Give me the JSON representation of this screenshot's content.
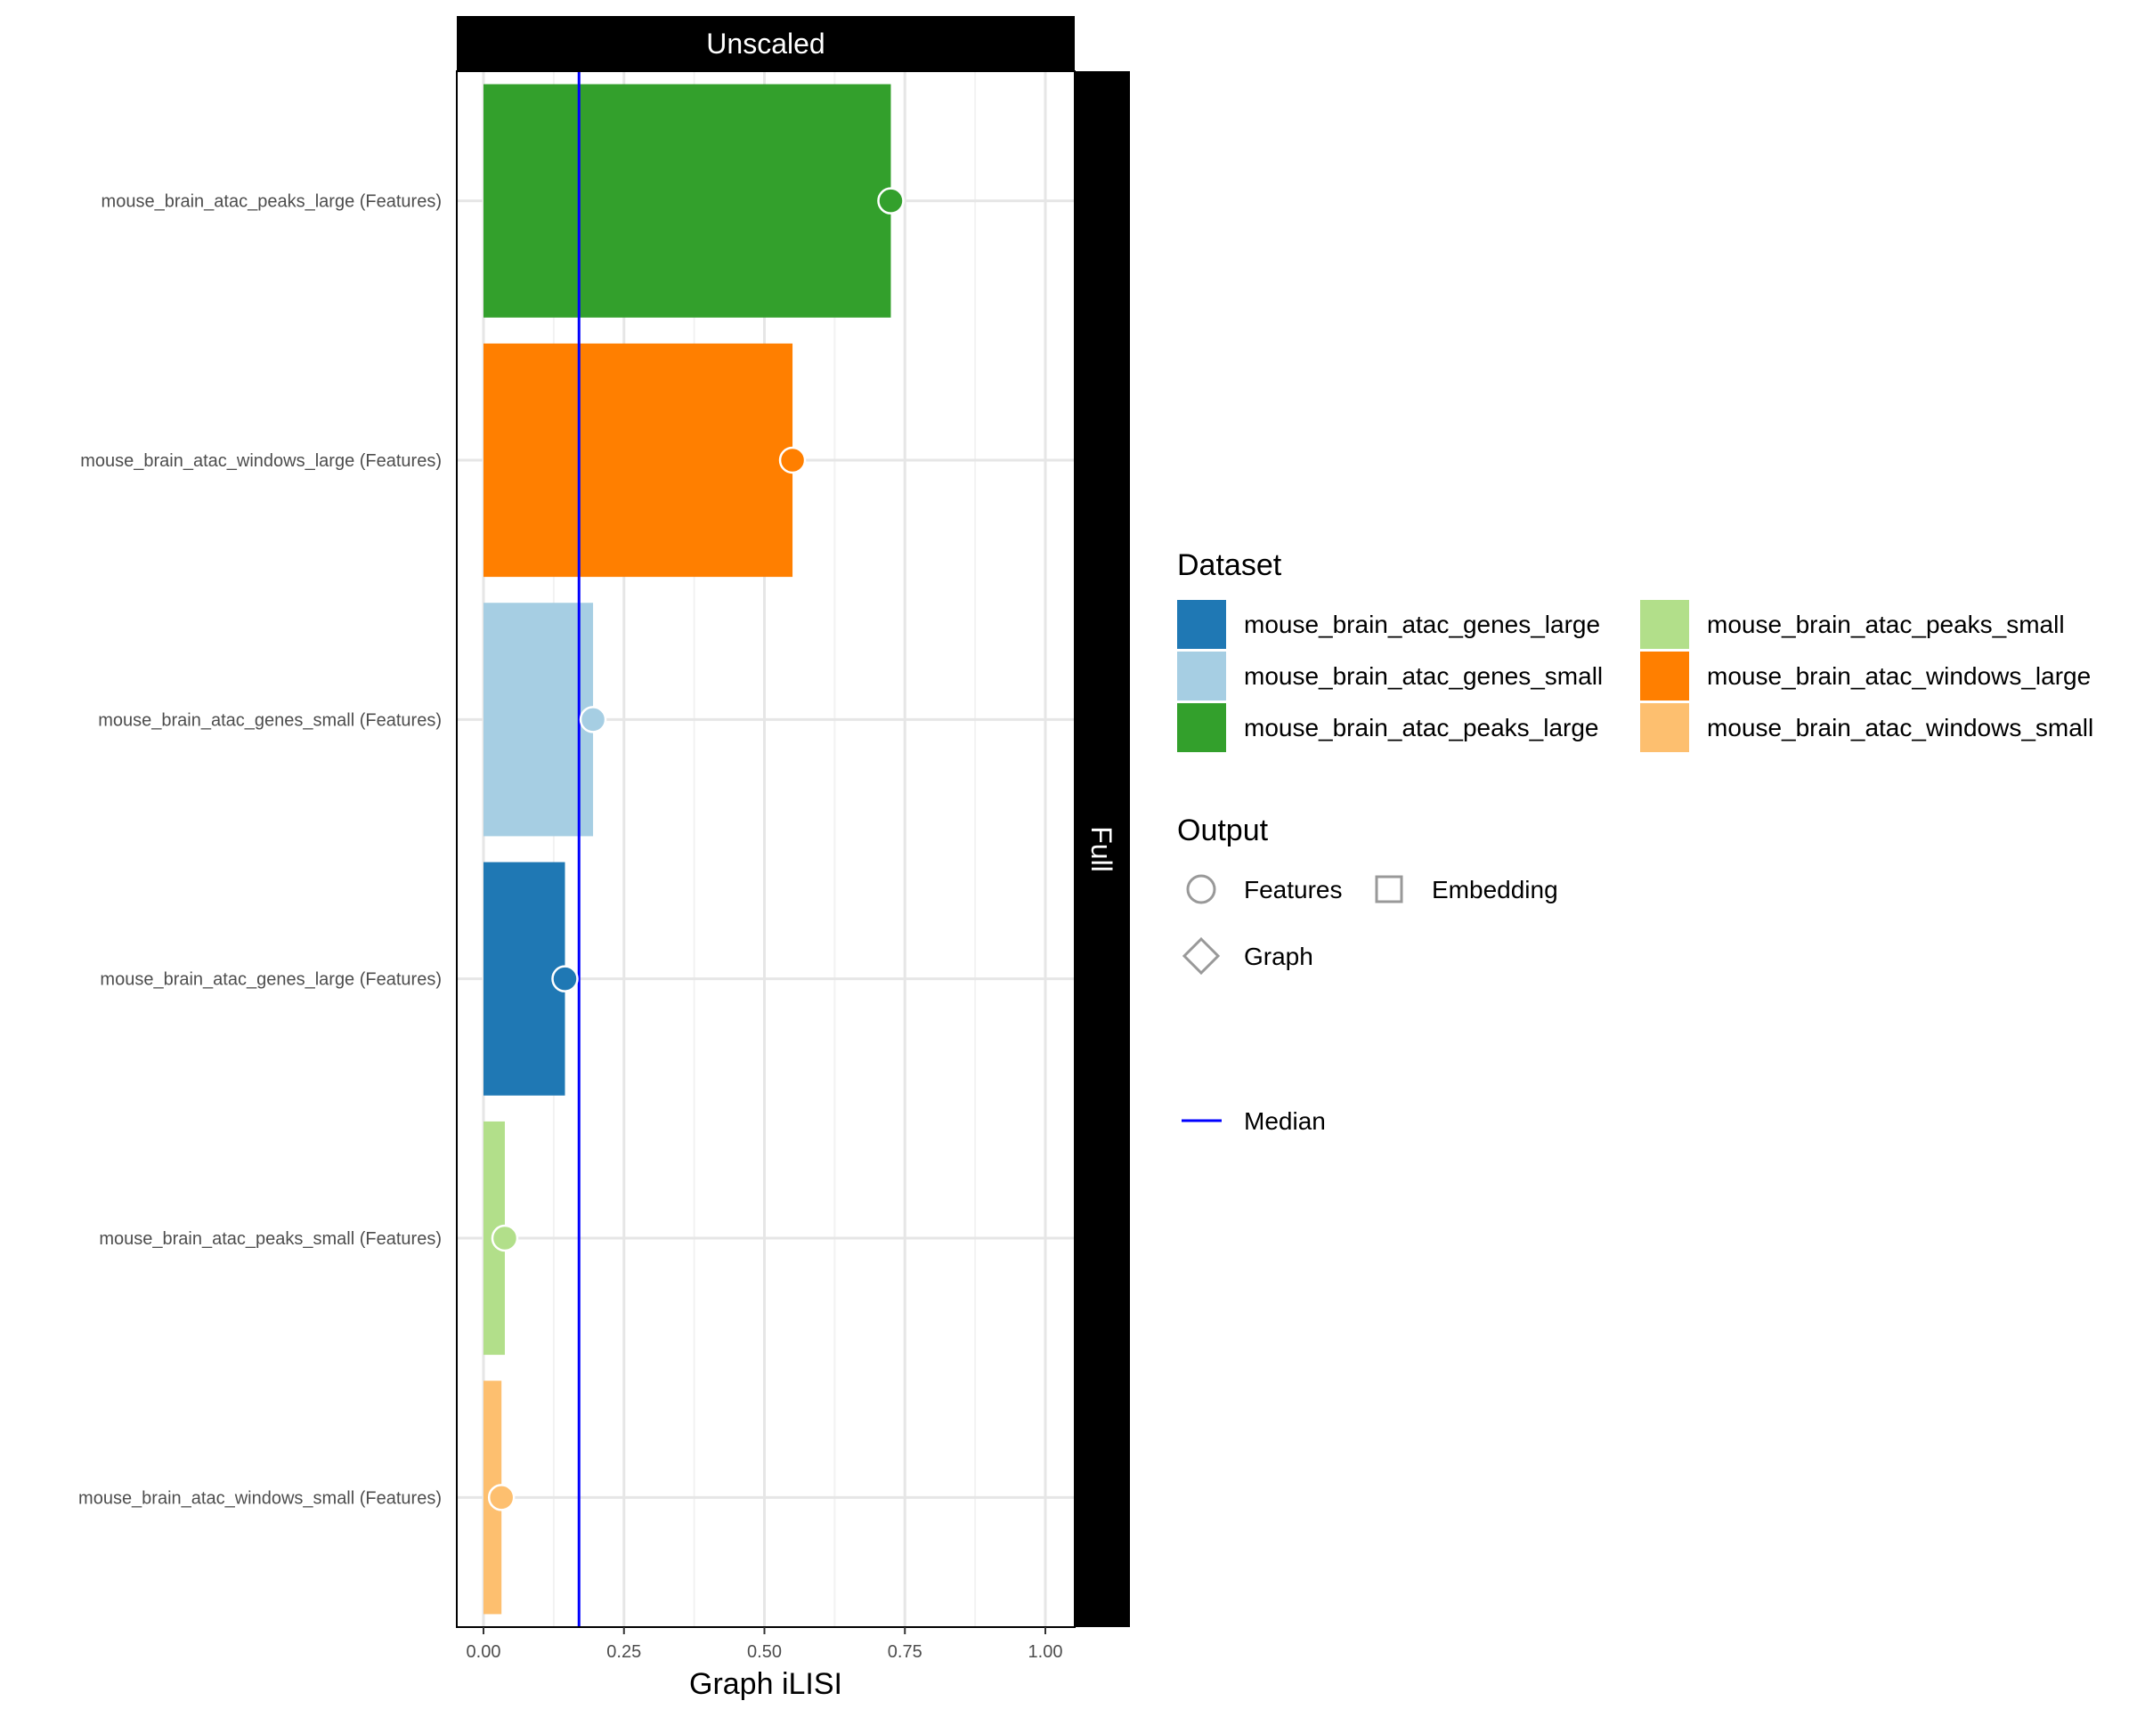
{
  "chart_data": {
    "type": "bar",
    "orientation": "horizontal",
    "panel_top_strip": "Unscaled",
    "panel_right_strip": "Full",
    "xlabel": "Graph iLISI",
    "ylabel": "",
    "xlim": [
      0,
      1.05
    ],
    "x_ticks": [
      0,
      0.25,
      0.5,
      0.75,
      1.0
    ],
    "x_tick_labels": [
      "0.00",
      "0.25",
      "0.50",
      "0.75",
      "1.00"
    ],
    "median": 0.17,
    "grid": true,
    "categories": [
      "mouse_brain_atac_peaks_large (Features)",
      "mouse_brain_atac_windows_large (Features)",
      "mouse_brain_atac_genes_small (Features)",
      "mouse_brain_atac_genes_large (Features)",
      "mouse_brain_atac_peaks_small (Features)",
      "mouse_brain_atac_windows_small (Features)"
    ],
    "values": [
      0.725,
      0.55,
      0.195,
      0.145,
      0.038,
      0.032
    ],
    "bar_colors": [
      "#33a02c",
      "#ff7f00",
      "#a6cee3",
      "#1f78b4",
      "#b2df8a",
      "#fdbf6f"
    ],
    "legend_placement": "right",
    "legend": {
      "dataset_title": "Dataset",
      "datasets": [
        {
          "label": "mouse_brain_atac_genes_large",
          "color": "#1f78b4"
        },
        {
          "label": "mouse_brain_atac_genes_small",
          "color": "#a6cee3"
        },
        {
          "label": "mouse_brain_atac_peaks_large",
          "color": "#33a02c"
        },
        {
          "label": "mouse_brain_atac_peaks_small",
          "color": "#b2df8a"
        },
        {
          "label": "mouse_brain_atac_windows_large",
          "color": "#ff7f00"
        },
        {
          "label": "mouse_brain_atac_windows_small",
          "color": "#fdbf6f"
        }
      ],
      "output_title": "Output",
      "outputs": [
        {
          "label": "Features",
          "shape": "circle"
        },
        {
          "label": "Embedding",
          "shape": "square"
        },
        {
          "label": "Graph",
          "shape": "diamond"
        }
      ],
      "median_label": "Median",
      "median_color": "#0000ff"
    }
  }
}
